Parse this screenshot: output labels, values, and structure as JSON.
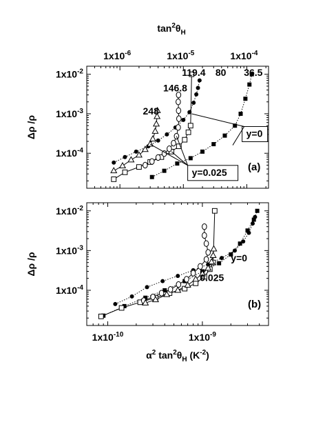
{
  "chart_data": [
    {
      "type": "scatter",
      "panel_label": "(a)",
      "top_axis": {
        "label_base": "tan",
        "label_sup": "2",
        "label_sym": "θ",
        "label_sub": "H",
        "scale": "log",
        "xlim": [
          3e-07,
          0.00022
        ],
        "ticks": [
          {
            "v": 1e-06,
            "t": "1x10"
          },
          {
            "v": 1e-05,
            "t": "1x10"
          },
          {
            "v": 0.0001,
            "t": "1x10"
          }
        ],
        "tick_exps": [
          "-6",
          "-5",
          "-4"
        ]
      },
      "yaxis": {
        "label": "Δρ /ρ",
        "scale": "log",
        "ylim": [
          1.3e-05,
          0.016
        ],
        "ticks": [
          {
            "v": 0.0001,
            "t": "1x10",
            "e": "-4"
          },
          {
            "v": 0.001,
            "t": "1x10",
            "e": "-3"
          },
          {
            "v": 0.01,
            "t": "1x10",
            "e": "-2"
          }
        ]
      },
      "annotations": [
        {
          "text": "119.4",
          "x": 9.5e-06,
          "y": 0.0092
        },
        {
          "text": "80",
          "x": 3.2e-05,
          "y": 0.0092
        },
        {
          "text": "36.5",
          "x": 9e-05,
          "y": 0.0092
        },
        {
          "text": "146.8",
          "x": 4.8e-06,
          "y": 0.0037
        },
        {
          "text": "248",
          "x": 2.3e-06,
          "y": 0.00095
        },
        {
          "text": "y=0",
          "x": 9.8e-05,
          "y": 0.00026,
          "boxed": true
        },
        {
          "text": "y=0.025",
          "x": 1.36e-05,
          "y": 2.7e-05,
          "boxed": true
        }
      ],
      "series": [
        {
          "marker": "filled-square",
          "line": "dotted",
          "points": [
            [
              3.2e-06,
              2.5e-05
            ],
            [
              5e-06,
              3.6e-05
            ],
            [
              8e-06,
              5.5e-05
            ],
            [
              1.3e-05,
              7.5e-05
            ],
            [
              2e-05,
              0.00011
            ],
            [
              3e-05,
              0.00017
            ],
            [
              4.5e-05,
              0.00028
            ],
            [
              6.5e-05,
              0.0005
            ],
            [
              8e-05,
              0.001
            ],
            [
              9.5e-05,
              0.0024
            ],
            [
              0.00011,
              0.0055
            ],
            [
              0.00012,
              0.01
            ]
          ]
        },
        {
          "marker": "filled-circle",
          "line": "dotted",
          "points": [
            [
              8e-07,
              5.8e-05
            ],
            [
              1.2e-06,
              8e-05
            ],
            [
              1.8e-06,
              0.00011
            ],
            [
              2.8e-06,
              0.00015
            ],
            [
              4e-06,
              0.00021
            ],
            [
              5.5e-06,
              0.0003
            ],
            [
              7.5e-06,
              0.00045
            ],
            [
              1e-05,
              0.0007
            ],
            [
              1.25e-05,
              0.0011
            ],
            [
              1.45e-05,
              0.0019
            ],
            [
              1.6e-05,
              0.0031
            ],
            [
              1.7e-05,
              0.0045
            ],
            [
              1.8e-05,
              0.007
            ]
          ]
        },
        {
          "marker": "open-square",
          "line": "solid",
          "points": [
            [
              8e-07,
              2.2e-05
            ],
            [
              1.2e-06,
              3.3e-05
            ],
            [
              2e-06,
              4.5e-05
            ],
            [
              3e-06,
              6e-05
            ],
            [
              4.5e-06,
              8e-05
            ],
            [
              6.5e-06,
              0.00011
            ],
            [
              8.5e-06,
              0.00015
            ],
            [
              1.05e-05,
              0.00022
            ],
            [
              1.2e-05,
              0.00034
            ],
            [
              1.3e-05,
              0.0005
            ],
            [
              1.35e-05,
              0.01
            ]
          ]
        },
        {
          "marker": "open-circle",
          "line": "solid",
          "points": [
            [
              2.5e-06,
              5e-05
            ],
            [
              3.2e-06,
              6.2e-05
            ],
            [
              4e-06,
              7.8e-05
            ],
            [
              5e-06,
              9.8e-05
            ],
            [
              6e-06,
              0.00013
            ],
            [
              7e-06,
              0.00018
            ],
            [
              7.8e-06,
              0.00027
            ],
            [
              8.3e-06,
              0.00045
            ],
            [
              8.5e-06,
              0.00075
            ],
            [
              8.4e-06,
              0.0012
            ],
            [
              8.3e-06,
              0.002
            ],
            [
              8.4e-06,
              0.003
            ]
          ]
        },
        {
          "marker": "open-triangle",
          "line": "solid",
          "points": [
            [
              8e-07,
              3.6e-05
            ],
            [
              1.1e-06,
              4.8e-05
            ],
            [
              1.5e-06,
              6.8e-05
            ],
            [
              2e-06,
              9e-05
            ],
            [
              2.5e-06,
              0.000125
            ],
            [
              3e-06,
              0.00017
            ],
            [
              3.3e-06,
              0.00023
            ],
            [
              3.6e-06,
              0.00036
            ],
            [
              3.75e-06,
              0.00055
            ],
            [
              3.85e-06,
              0.00085
            ],
            [
              3.9e-06,
              0.0012
            ]
          ]
        }
      ]
    },
    {
      "type": "scatter",
      "panel_label": "(b)",
      "xaxis": {
        "label_sym": "α",
        "label_sup1": "2",
        "label_base": " tan",
        "label_sup2": "2",
        "label_sym2": "θ",
        "label_sub": "H",
        "label_unit": " (K",
        "label_unit_sup": "-2",
        "label_close": ")",
        "scale": "log",
        "xlim": [
          6e-11,
          5e-09
        ],
        "ticks": [
          {
            "v": 1e-10,
            "t": "1x10",
            "e": "-10"
          },
          {
            "v": 1e-09,
            "t": "1x10",
            "e": "-9"
          }
        ]
      },
      "yaxis": {
        "label": "Δρ /ρ",
        "scale": "log",
        "ylim": [
          1.3e-05,
          0.016
        ],
        "ticks": [
          {
            "v": 0.0001,
            "t": "1x10",
            "e": "-4"
          },
          {
            "v": 0.001,
            "t": "1x10",
            "e": "-3"
          },
          {
            "v": 0.01,
            "t": "1x10",
            "e": "-2"
          }
        ]
      },
      "annotations": [
        {
          "text": "y=0",
          "x": 2e-09,
          "y": 0.00053
        },
        {
          "text": "0.025",
          "x": 9.4e-10,
          "y": 0.00017
        }
      ],
      "series": [
        {
          "marker": "filled-square",
          "line": "dotted",
          "points": [
            [
              9e-11,
              2.3e-05
            ],
            [
              1.5e-10,
              4e-05
            ],
            [
              2.5e-10,
              6.5e-05
            ],
            [
              4e-10,
              0.0001
            ],
            [
              6.5e-10,
              0.00017
            ],
            [
              1e-09,
              0.0003
            ],
            [
              1.5e-09,
              0.00048
            ],
            [
              2e-09,
              0.0008
            ],
            [
              2.5e-09,
              0.0015
            ],
            [
              3e-09,
              0.0032
            ],
            [
              3.5e-09,
              0.006
            ],
            [
              3.8e-09,
              0.01
            ]
          ]
        },
        {
          "marker": "filled-circle",
          "line": "dotted",
          "points": [
            [
              1.2e-10,
              4.5e-05
            ],
            [
              1.8e-10,
              7e-05
            ],
            [
              2.6e-10,
              0.00012
            ],
            [
              3.8e-10,
              0.00017
            ],
            [
              5.5e-10,
              0.00023
            ],
            [
              8e-10,
              0.00032
            ],
            [
              1.15e-09,
              0.00045
            ],
            [
              1.6e-09,
              0.00065
            ],
            [
              2.2e-09,
              0.001
            ],
            [
              2.7e-09,
              0.0017
            ],
            [
              3.1e-09,
              0.0028
            ],
            [
              3.4e-09,
              0.0048
            ],
            [
              3.6e-09,
              0.007
            ]
          ]
        },
        {
          "marker": "open-square",
          "line": "solid",
          "points": [
            [
              8.5e-11,
              2.2e-05
            ],
            [
              1.4e-10,
              3.6e-05
            ],
            [
              2.2e-10,
              5e-05
            ],
            [
              3.2e-10,
              6.5e-05
            ],
            [
              4.5e-10,
              8.5e-05
            ],
            [
              6.5e-10,
              0.00011
            ],
            [
              8.5e-10,
              0.00015
            ],
            [
              1.05e-09,
              0.00022
            ],
            [
              1.2e-09,
              0.00034
            ],
            [
              1.3e-09,
              0.0005
            ],
            [
              1.35e-09,
              0.01
            ]
          ]
        },
        {
          "marker": "open-circle",
          "line": "solid",
          "points": [
            [
              2.4e-10,
              5.5e-05
            ],
            [
              3e-10,
              6.8e-05
            ],
            [
              3.7e-10,
              8.5e-05
            ],
            [
              4.6e-10,
              0.000105
            ],
            [
              5.6e-10,
              0.00014
            ],
            [
              6.8e-10,
              0.00019
            ],
            [
              8e-10,
              0.00027
            ],
            [
              9.5e-10,
              0.0004
            ],
            [
              1.1e-09,
              0.0006
            ],
            [
              1.15e-09,
              0.0009
            ],
            [
              1.1e-09,
              0.0015
            ],
            [
              1.05e-09,
              0.0024
            ],
            [
              1.05e-09,
              0.004
            ]
          ]
        },
        {
          "marker": "open-triangle",
          "line": "solid",
          "points": [
            [
              2.5e-10,
              4.8e-05
            ],
            [
              3.2e-10,
              5.8e-05
            ],
            [
              4.2e-10,
              7.8e-05
            ],
            [
              5.5e-10,
              0.0001
            ],
            [
              7e-10,
              0.000135
            ],
            [
              8.5e-10,
              0.00019
            ],
            [
              1e-09,
              0.00026
            ],
            [
              1.15e-09,
              0.00036
            ],
            [
              1.25e-09,
              0.00052
            ],
            [
              1.3e-09,
              0.00075
            ],
            [
              1.32e-09,
              0.0011
            ]
          ]
        }
      ]
    }
  ]
}
